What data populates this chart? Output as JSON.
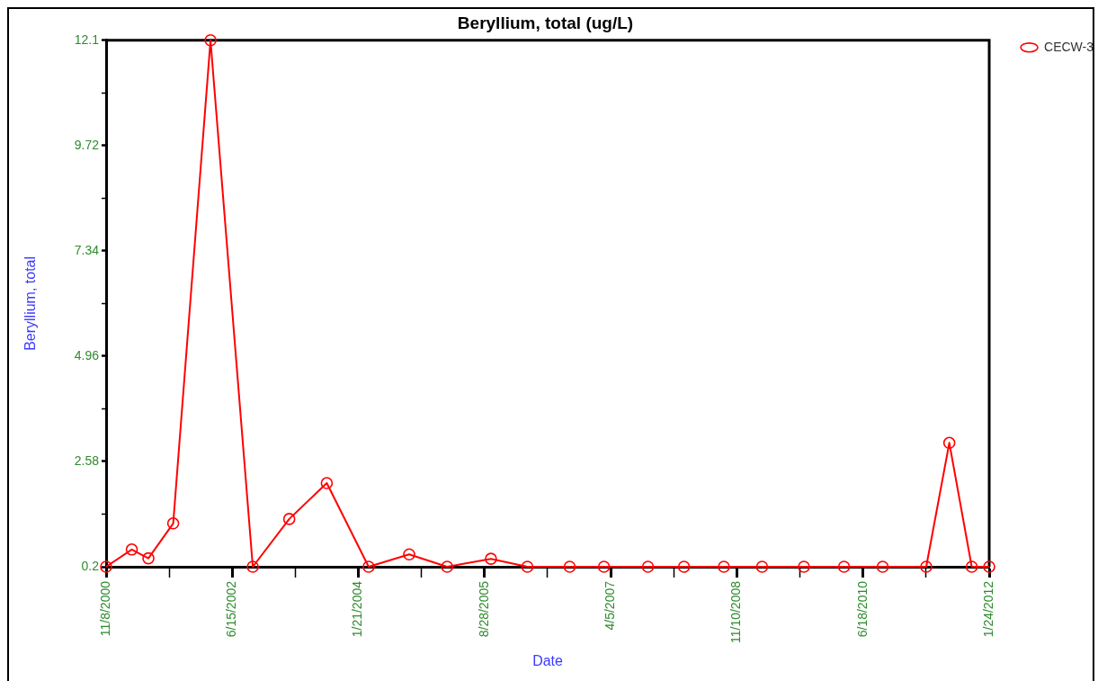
{
  "chart_data": {
    "type": "line",
    "title": "Beryllium, total (ug/L)",
    "xlabel": "Date",
    "ylabel": "Beryllium, total",
    "x": [
      "2000-11-08",
      "2001-03-07",
      "2001-05-23",
      "2001-09-15",
      "2002-03-07",
      "2002-09-19",
      "2003-03-07",
      "2003-08-28",
      "2004-03-09",
      "2004-09-13",
      "2005-03-08",
      "2005-09-27",
      "2006-03-15",
      "2006-09-27",
      "2007-03-05",
      "2007-09-25",
      "2008-03-10",
      "2008-09-11",
      "2009-03-07",
      "2009-09-17",
      "2010-03-22",
      "2010-09-17",
      "2011-04-07",
      "2011-07-23",
      "2011-11-04",
      "2012-01-24"
    ],
    "series": [
      {
        "name": "CECW-3",
        "color": "#ff0000",
        "values": [
          0.2,
          0.59,
          0.39,
          1.18,
          12.1,
          0.2,
          1.28,
          2.09,
          0.2,
          0.48,
          0.2,
          0.38,
          0.2,
          0.2,
          0.2,
          0.2,
          0.2,
          0.2,
          0.2,
          0.2,
          0.2,
          0.2,
          0.2,
          3.0,
          0.2,
          0.2
        ]
      }
    ],
    "xlim": [
      "2000-11-08",
      "2012-01-24"
    ],
    "xticks": [
      {
        "value": "2000-11-08",
        "label": "11/8/2000"
      },
      {
        "value": "2001-08-27",
        "label": null
      },
      {
        "value": "2002-06-15",
        "label": "6/15/2002"
      },
      {
        "value": "2003-04-03",
        "label": null
      },
      {
        "value": "2004-01-21",
        "label": "1/21/2004"
      },
      {
        "value": "2004-11-08",
        "label": null
      },
      {
        "value": "2005-08-28",
        "label": "8/28/2005"
      },
      {
        "value": "2006-06-16",
        "label": null
      },
      {
        "value": "2007-04-05",
        "label": "4/5/2007"
      },
      {
        "value": "2008-01-22",
        "label": null
      },
      {
        "value": "2008-11-10",
        "label": "11/10/2008"
      },
      {
        "value": "2009-08-29",
        "label": null
      },
      {
        "value": "2010-06-18",
        "label": "6/18/2010"
      },
      {
        "value": "2011-04-06",
        "label": null
      },
      {
        "value": "2012-01-24",
        "label": "1/24/2012"
      }
    ],
    "ylim": [
      0.2,
      12.1
    ],
    "yticks": [
      0.2,
      {
        "value": 1.39,
        "label": null
      },
      2.58,
      {
        "value": 3.77,
        "label": null
      },
      4.96,
      {
        "value": 6.15,
        "label": null
      },
      7.34,
      {
        "value": 8.53,
        "label": null
      },
      9.72,
      {
        "value": 10.91,
        "label": null
      },
      12.1
    ],
    "grid": false,
    "legend": "top right",
    "marker": "circle",
    "line_style": "solid"
  }
}
